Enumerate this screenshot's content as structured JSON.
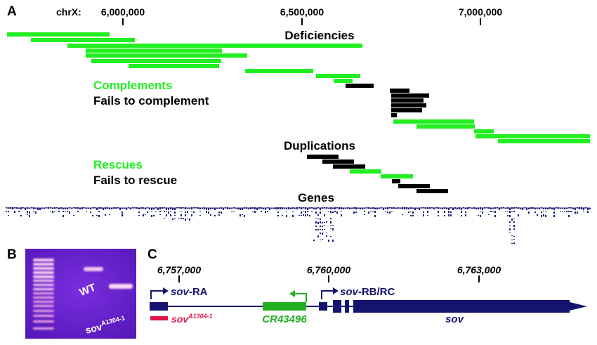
{
  "panel_a": {
    "letter": "A",
    "chrom_label": "chrX:",
    "ticks": [
      "6,000,000",
      "6,500,000",
      "7,000,000"
    ],
    "section_deficiencies": "Deficiencies",
    "section_duplications": "Duplications",
    "section_genes": "Genes",
    "legend_complements": "Complements",
    "legend_fails_complement": "Fails to complement",
    "legend_rescues": "Rescues",
    "legend_fails_rescue": "Fails to rescue",
    "colors": {
      "complements": "#22ee22",
      "fails": "#000000",
      "genes": "#1a1a7a"
    }
  },
  "panel_b": {
    "letter": "B",
    "lane_wt": "WT",
    "lane_mutant_base": "sov",
    "lane_mutant_sup": "A1304-1",
    "gel_color": "#6a1fd0"
  },
  "panel_c": {
    "letter": "C",
    "ticks": [
      "6,757,000",
      "6,760,000",
      "6,763,000"
    ],
    "transcript_ra_italic": "sov",
    "transcript_ra_suffix": "-RA",
    "transcript_rb_italic": "sov",
    "transcript_rb_suffix": "-RB/RC",
    "allele_base": "sov",
    "allele_sup": "A1304-1",
    "ncrna": "CR43496",
    "gene": "sov",
    "colors": {
      "sov": "#14146e",
      "allele": "#e0154a",
      "ncrna": "#22b022"
    }
  }
}
